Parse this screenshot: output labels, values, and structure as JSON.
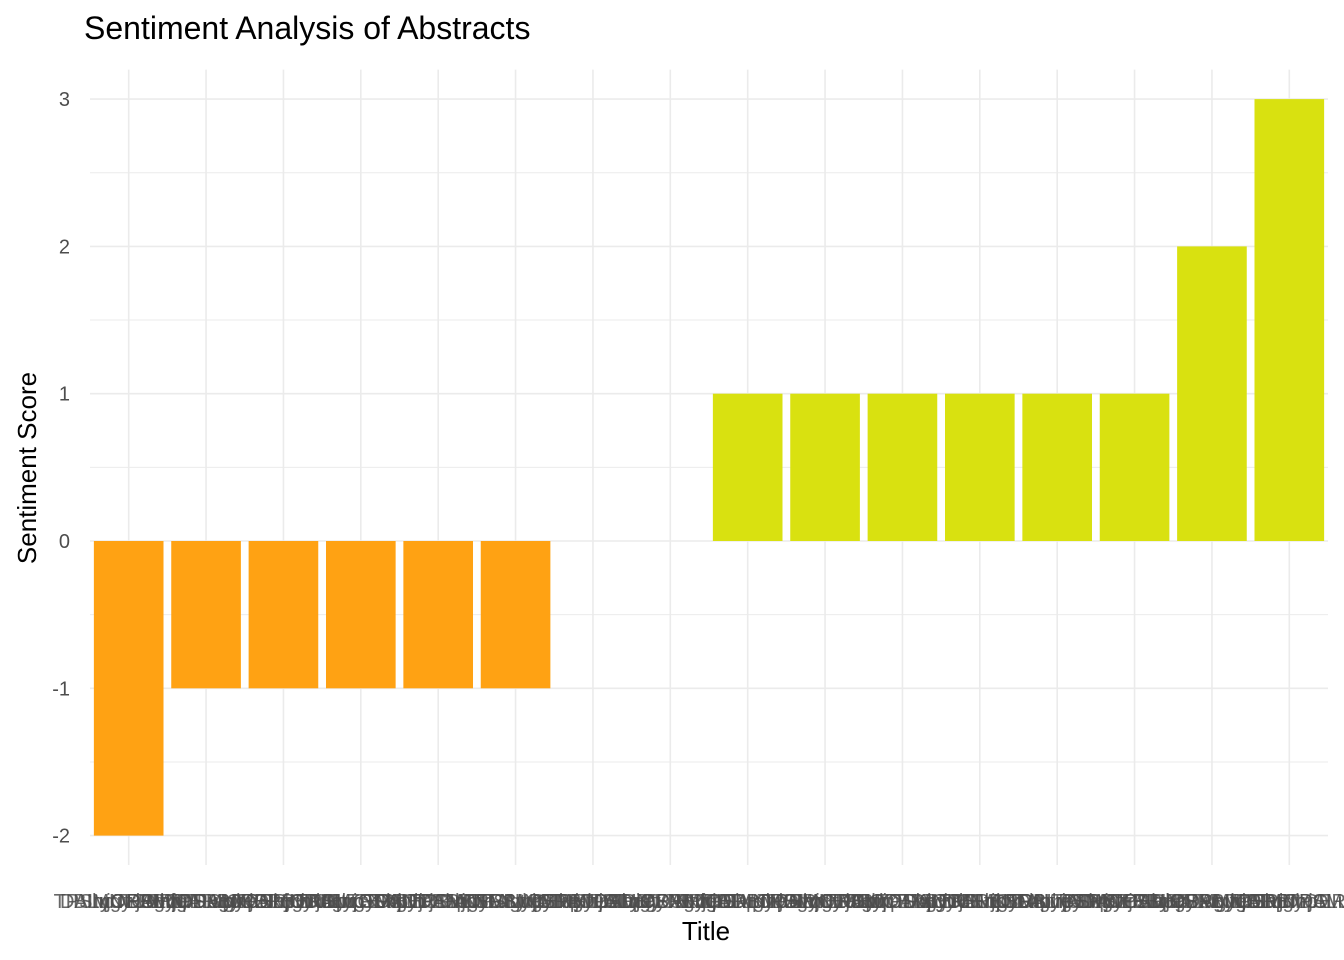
{
  "chart_data": {
    "type": "bar",
    "title": "Sentiment Analysis of Abstracts",
    "xlabel": "Title",
    "ylabel": "Sentiment Score",
    "ylim": [
      -2.2,
      3.2
    ],
    "yticks": [
      -2,
      -1,
      0,
      1,
      2,
      3
    ],
    "grid": true,
    "legend": "none",
    "x_tick_labels_legible": false,
    "colors": {
      "negative": "#FFA213",
      "positive": "#D9E110",
      "grid": "#EBEBEB"
    },
    "values": [
      -2,
      -1,
      -1,
      -1,
      -1,
      -1,
      0,
      0,
      1,
      1,
      1,
      1,
      1,
      1,
      2,
      3
    ]
  }
}
